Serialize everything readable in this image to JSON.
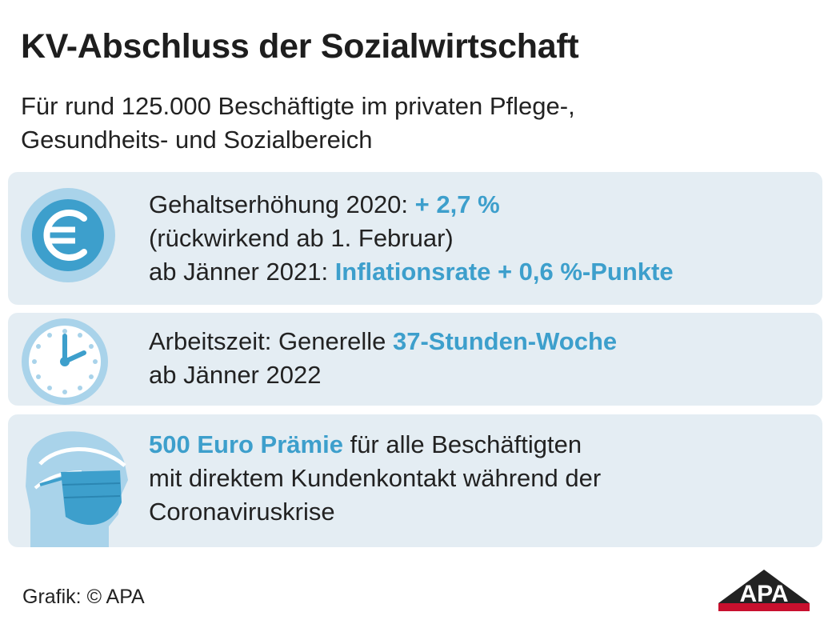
{
  "header": {
    "title": "KV-Abschluss der Sozialwirtschaft",
    "subtitle_line1": "Für rund 125.000 Beschäftigte im privaten Pflege-,",
    "subtitle_line2": "Gesundheits- und Sozialbereich"
  },
  "cards": {
    "salary": {
      "icon": "euro-icon",
      "line1_text": "Gehaltserhöhung 2020: ",
      "line1_highlight": "+ 2,7 %",
      "line2_text": "(rückwirkend ab 1. Februar)",
      "line3_text": "ab Jänner 2021: ",
      "line3_highlight": "Inflationsrate + 0,6 %-Punkte"
    },
    "worktime": {
      "icon": "clock-icon",
      "line1_text": "Arbeitszeit: Generelle ",
      "line1_highlight": "37-Stunden-Woche",
      "line2_text": "ab Jänner 2022"
    },
    "bonus": {
      "icon": "face-mask-person-icon",
      "line1_highlight": "500 Euro Prämie",
      "line1_text": " für alle Beschäftigten",
      "line2_text": "mit direktem Kundenkontakt während der",
      "line3_text": "Coronaviruskrise"
    }
  },
  "footer": {
    "credit": "Grafik: © APA",
    "logo_text": "APA"
  },
  "colors": {
    "accent": "#3d9fcc",
    "card_background": "#e4edf3",
    "icon_light": "#a9d3ea",
    "logo_red": "#c8102e",
    "text": "#222222"
  }
}
